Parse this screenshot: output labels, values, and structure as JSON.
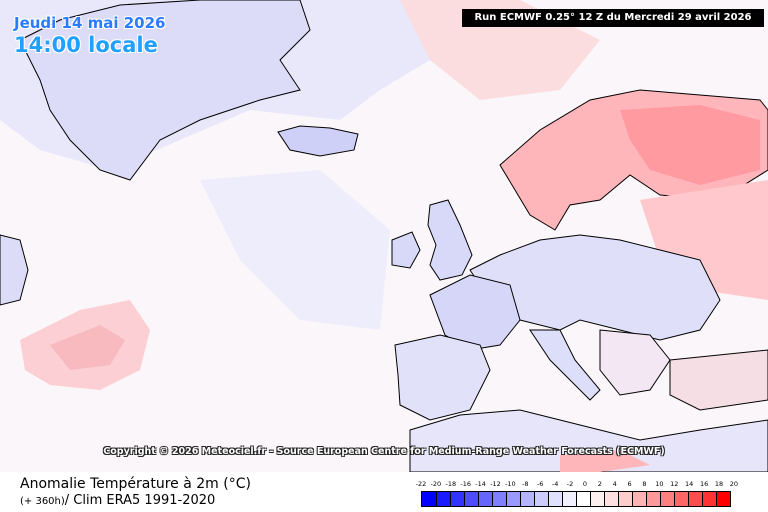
{
  "header": {
    "date": "Jeudi 14 mai 2026",
    "time": "14:00 locale",
    "run": "Run ECMWF 0.25° 12 Z du Mercredi 29 avril 2026"
  },
  "copyright": "Copyright © 2026 Meteociel.fr - Source European Centre for Medium-Range Weather Forecasts (ECMWF)",
  "footer": {
    "title": "Anomalie Température à 2m (°C)",
    "subtitle_small": "(+ 360h)",
    "subtitle": "/ Clim ERA5 1991-2020"
  },
  "legend": {
    "labels": [
      "-22",
      "-20",
      "-18",
      "-16",
      "-14",
      "-12",
      "-10",
      "-8",
      "-6",
      "-4",
      "-2",
      "0",
      "2",
      "4",
      "6",
      "8",
      "10",
      "12",
      "14",
      "16",
      "18",
      "20"
    ],
    "colors": [
      "#0000ff",
      "#1a1aff",
      "#3333ff",
      "#4d4dff",
      "#6666ff",
      "#8080ff",
      "#9999ff",
      "#b3b3ff",
      "#ccccff",
      "#e0e0ff",
      "#f0f0ff",
      "#ffffff",
      "#fff0f0",
      "#ffe0e0",
      "#ffcccc",
      "#ffb3b3",
      "#ff9999",
      "#ff8080",
      "#ff6666",
      "#ff4d4d",
      "#ff3333",
      "#ff0000"
    ]
  },
  "map": {
    "background_color": "#fbf7fa",
    "land_color": "#e7e7fb",
    "warm_color": "#ff8f95",
    "cool_color": "#c5c7f7"
  }
}
